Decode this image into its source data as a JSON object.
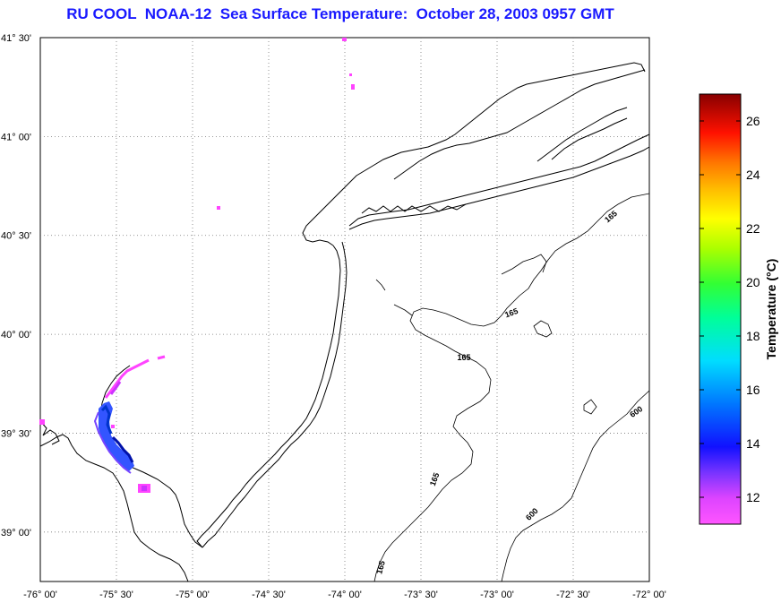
{
  "title": "RU COOL  NOAA-12  Sea Surface Temperature:  October 28, 2003 0957 GMT",
  "map": {
    "lon_range": [
      -76.0,
      -72.0
    ],
    "lat_range": [
      38.75,
      41.5
    ],
    "lon_ticks": [
      {
        "value": -76.0,
        "label": "-76° 00'"
      },
      {
        "value": -75.5,
        "label": "-75° 30'"
      },
      {
        "value": -75.0,
        "label": "-75° 00'"
      },
      {
        "value": -74.5,
        "label": "-74° 30'"
      },
      {
        "value": -74.0,
        "label": "-74° 00'"
      },
      {
        "value": -73.5,
        "label": "-73° 30'"
      },
      {
        "value": -73.0,
        "label": "-73° 00'"
      },
      {
        "value": -72.5,
        "label": "-72° 30'"
      },
      {
        "value": -72.0,
        "label": "-72° 00'"
      }
    ],
    "lat_ticks": [
      {
        "value": 41.5,
        "label": "41° 30'"
      },
      {
        "value": 41.0,
        "label": "41° 00'"
      },
      {
        "value": 40.5,
        "label": "40° 30'"
      },
      {
        "value": 40.0,
        "label": "40° 00'"
      },
      {
        "value": 39.5,
        "label": "39° 30'"
      },
      {
        "value": 39.0,
        "label": "39° 00'"
      }
    ],
    "grid": "dotted",
    "contour_labels": [
      "165",
      "165",
      "165",
      "165",
      "165",
      "600",
      "600"
    ]
  },
  "colorbar": {
    "label": "Temperature (°C)",
    "range": [
      11,
      27
    ],
    "ticks": [
      "26",
      "24",
      "22",
      "20",
      "18",
      "16",
      "14",
      "12"
    ],
    "tick_values": [
      26,
      24,
      22,
      20,
      18,
      16,
      14,
      12
    ]
  },
  "colors": {
    "title": "#1a1aff",
    "background": "#ffffff"
  }
}
